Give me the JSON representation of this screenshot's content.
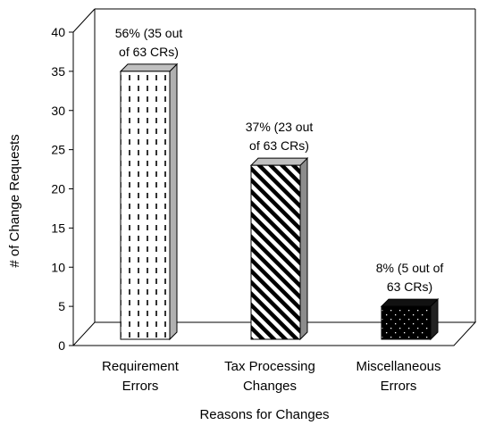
{
  "chart_data": {
    "type": "bar",
    "title": "",
    "xlabel": "Reasons for Changes",
    "ylabel": "# of Change Requests",
    "ylim": [
      0,
      40
    ],
    "yticks": [
      0,
      5,
      10,
      15,
      20,
      25,
      30,
      35,
      40
    ],
    "grid": false,
    "legend": "none",
    "categories": [
      [
        "Requirement",
        "Errors"
      ],
      [
        "Tax Processing",
        "Changes"
      ],
      [
        "Miscellaneous",
        "Errors"
      ]
    ],
    "values": [
      35,
      23,
      5
    ],
    "data_labels": [
      [
        "56% (35 out",
        "of 63 CRs)"
      ],
      [
        "37% (23 out",
        "of 63 CRs)"
      ],
      [
        "8% (5 out of",
        "63 CRs)"
      ]
    ],
    "patterns": [
      "vertical-dashes",
      "diagonal-stripes",
      "black-dots"
    ]
  }
}
